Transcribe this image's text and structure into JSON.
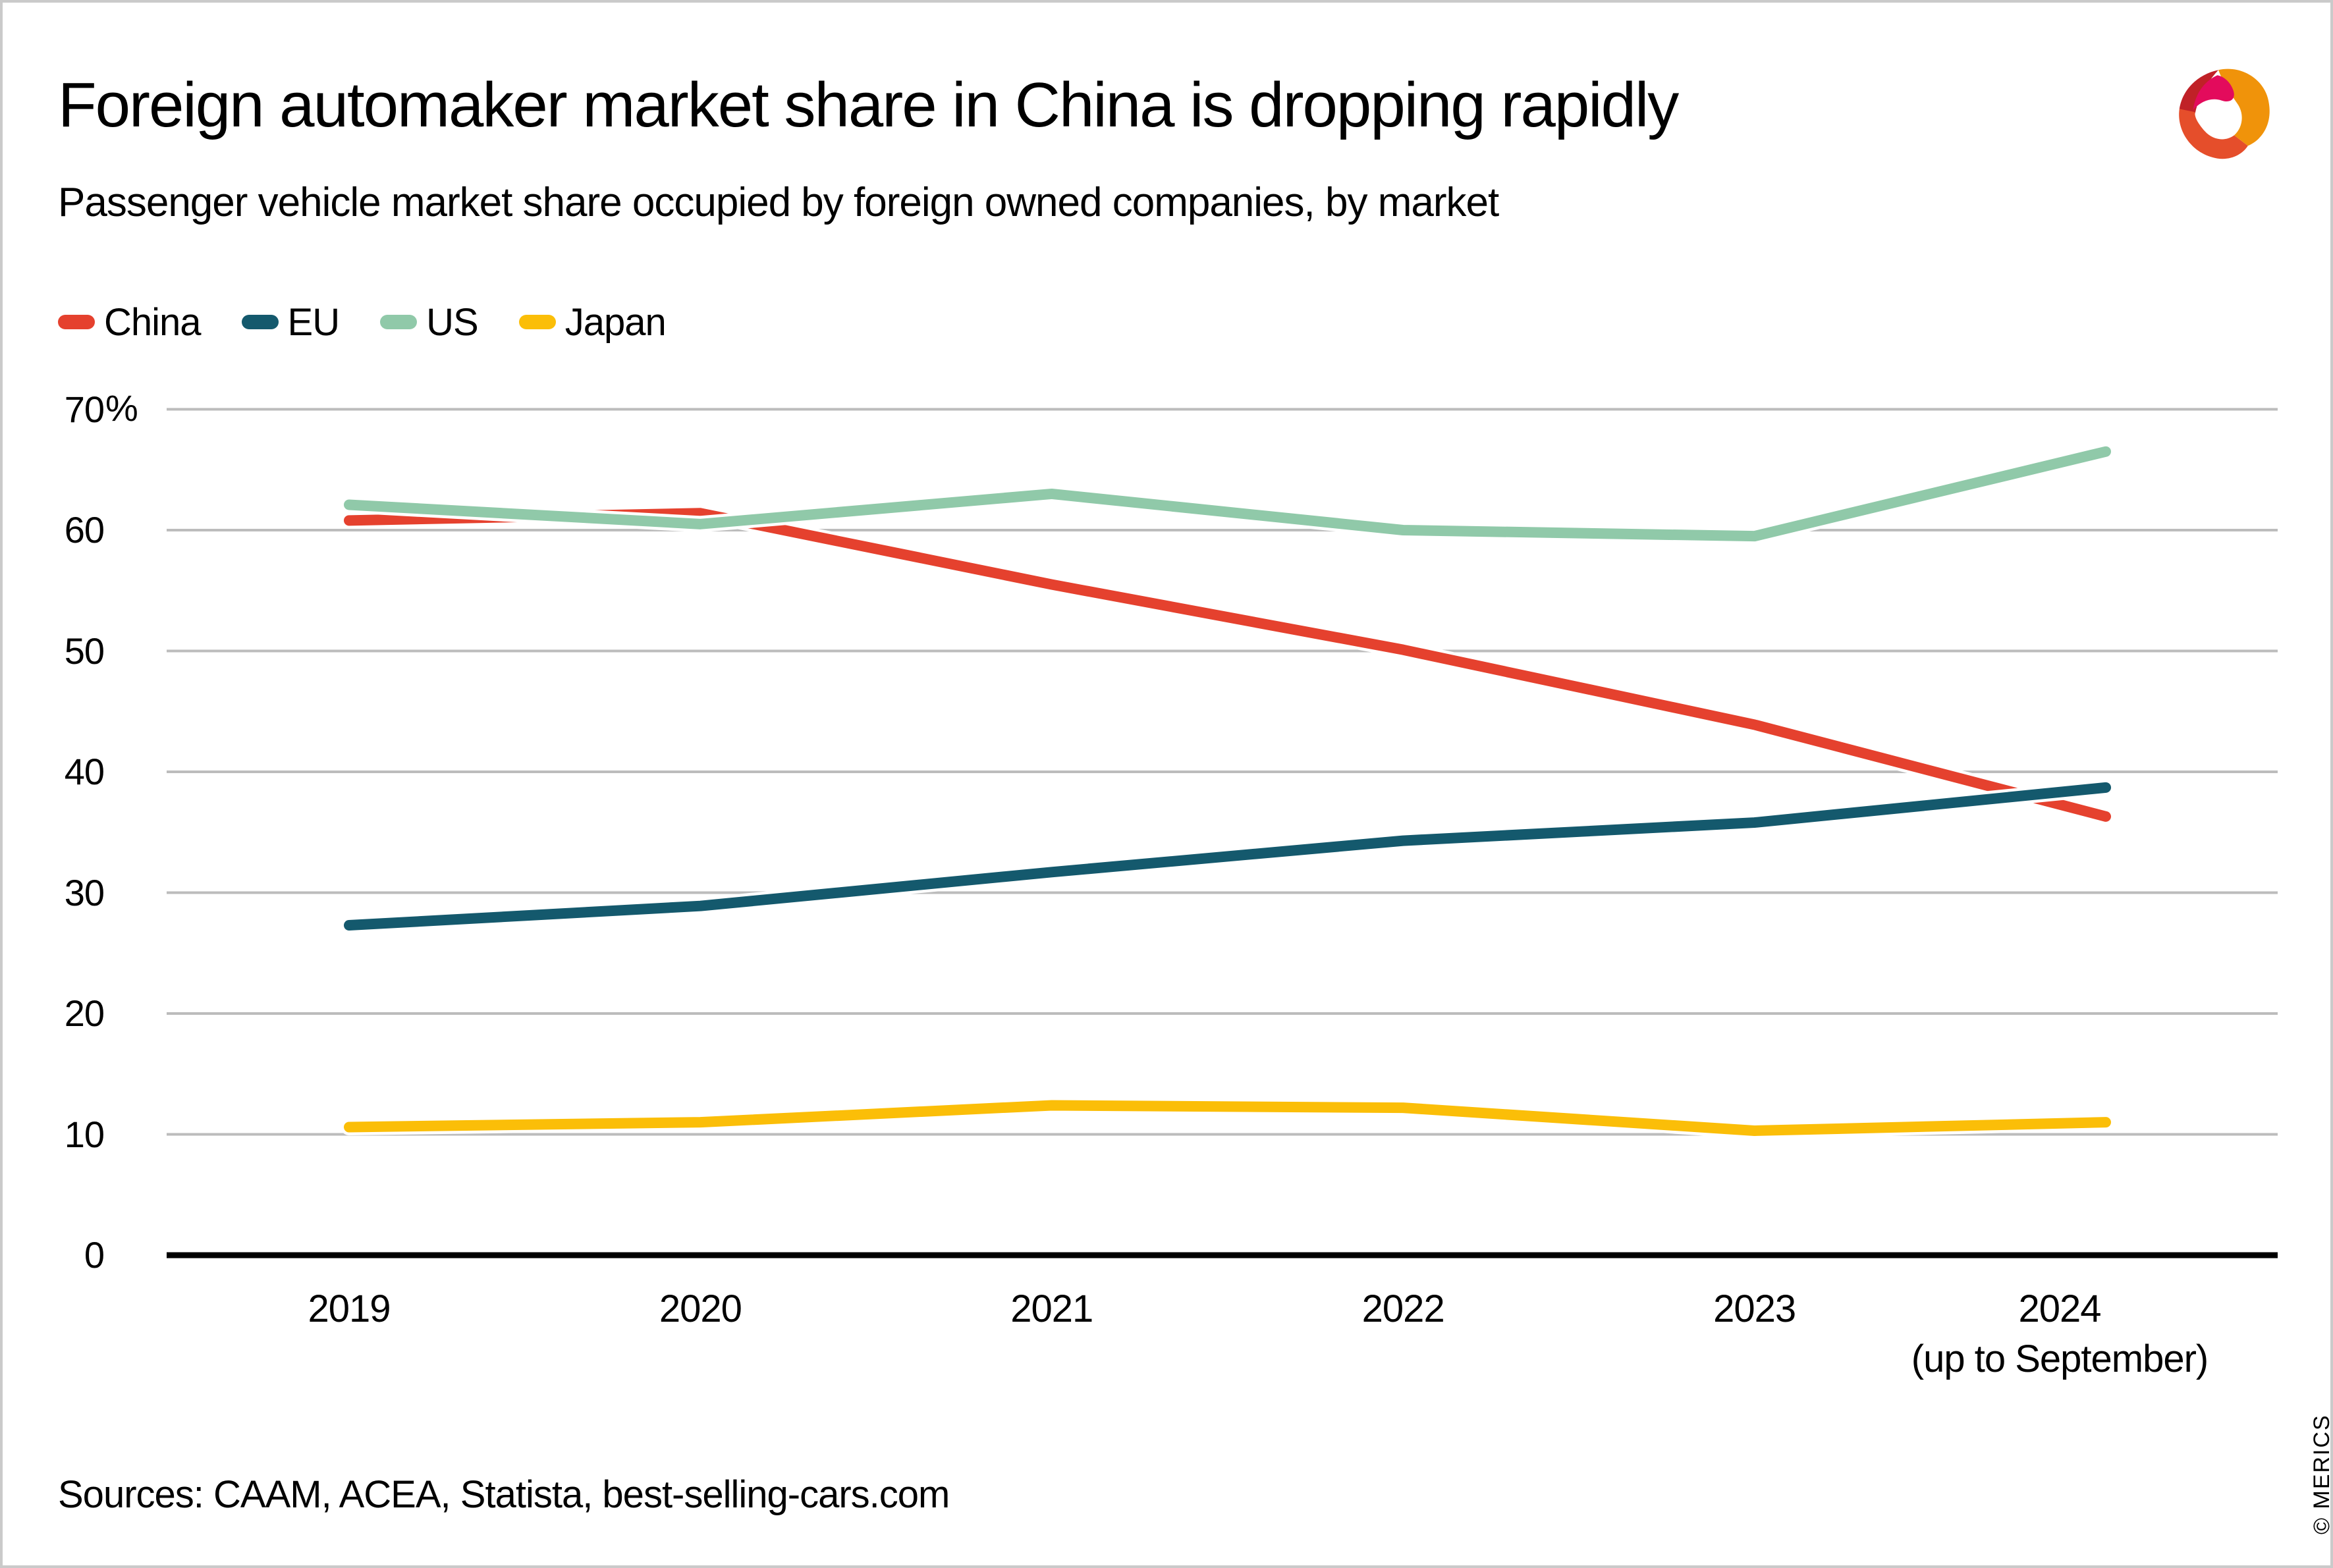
{
  "page": {
    "source": "Sources: CAAM, ACEA, Statista, best-selling-cars.com",
    "copyright": "© MERICS"
  },
  "legend": {
    "items": [
      {
        "label": "China",
        "color": "#e5412e"
      },
      {
        "label": "EU",
        "color": "#14596d"
      },
      {
        "label": "US",
        "color": "#90c9a9"
      },
      {
        "label": "Japan",
        "color": "#fbbe08"
      }
    ]
  },
  "chart_data": {
    "type": "line",
    "title": "Foreign automaker market share in China is dropping rapidly",
    "subtitle": "Passenger vehicle market share occupied by foreign owned companies, by market",
    "categories": [
      "2019",
      "2020",
      "2021",
      "2022",
      "2023",
      "2024"
    ],
    "x_note_last": "(up to September)",
    "series": [
      {
        "name": "China",
        "color": "#e5412e",
        "values": [
          60.8,
          61.4,
          55.5,
          50.1,
          43.9,
          36.3
        ]
      },
      {
        "name": "EU",
        "color": "#14596d",
        "values": [
          27.3,
          28.9,
          31.7,
          34.3,
          35.8,
          38.7
        ]
      },
      {
        "name": "US",
        "color": "#90c9a9",
        "values": [
          62.1,
          60.5,
          63.0,
          60.0,
          59.5,
          66.5
        ]
      },
      {
        "name": "Japan",
        "color": "#fbbe08",
        "values": [
          10.6,
          11.0,
          12.4,
          12.2,
          10.3,
          11.0
        ]
      }
    ],
    "xlabel": "",
    "ylabel": "",
    "unit": "%",
    "ylim": [
      0,
      70
    ],
    "ytick_step": 10,
    "ytick_labels": [
      "0",
      "10",
      "20",
      "30",
      "40",
      "50",
      "60",
      "70%"
    ],
    "grid": true,
    "legend_position": "top-left"
  },
  "colors": {
    "gridline": "#bcbcbc",
    "axis": "#000000",
    "background": "#ffffff",
    "border": "#cacaca",
    "line_casing": "#ffffff"
  },
  "logo": {
    "name": "MERICS logo",
    "colors": {
      "dark_red": "#c02127",
      "vermilion": "#e54e2b",
      "orange": "#f0930a",
      "magenta": "#e30b5c"
    }
  }
}
